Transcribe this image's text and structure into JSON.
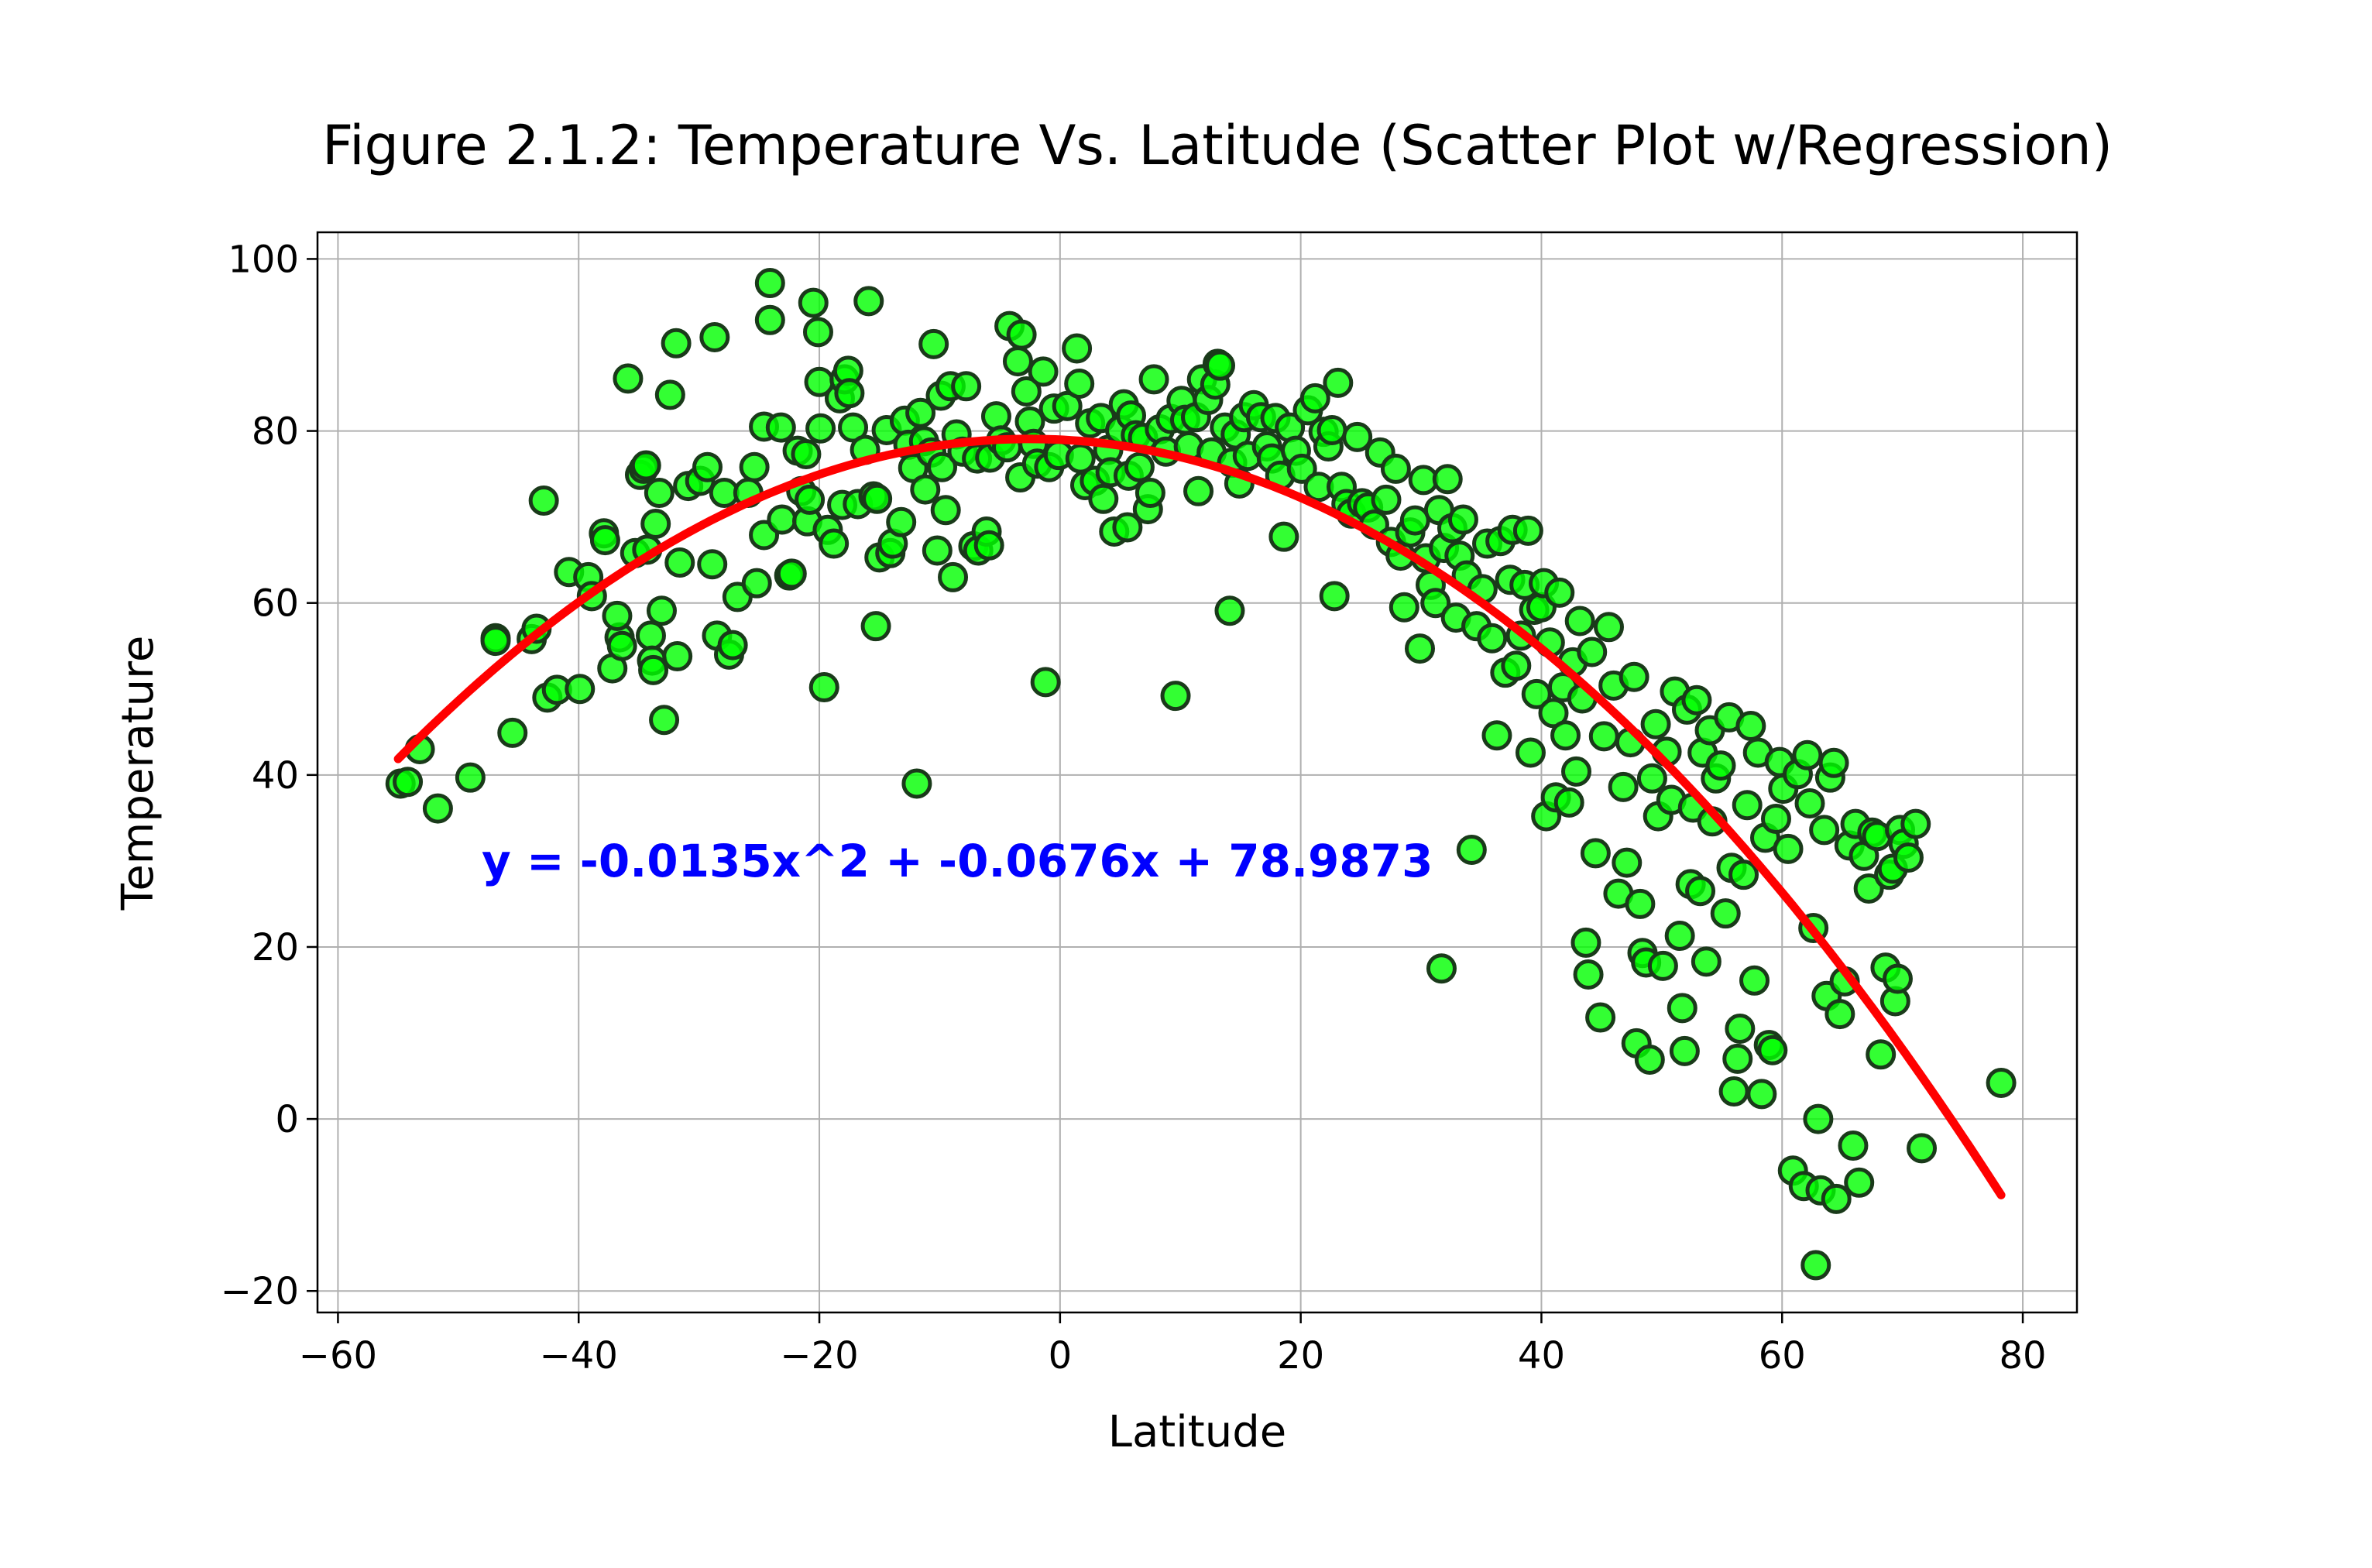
{
  "chart_data": {
    "type": "scatter",
    "title": "Figure 2.1.2: Temperature Vs. Latitude (Scatter Plot w/Regression)",
    "xlabel": "Latitude",
    "ylabel": "Temperature",
    "xlim": [
      -61.7,
      84.5
    ],
    "ylim": [
      -22.5,
      103.1
    ],
    "x_ticks": [
      -60,
      -40,
      -20,
      0,
      20,
      40,
      60,
      80
    ],
    "y_ticks": [
      -20,
      0,
      20,
      40,
      60,
      80,
      100
    ],
    "x_tick_labels": [
      "−60",
      "−40",
      "−20",
      "0",
      "20",
      "40",
      "60",
      "80"
    ],
    "y_tick_labels": [
      "−20",
      "0",
      "20",
      "40",
      "60",
      "80",
      "100"
    ],
    "grid": true,
    "marker": {
      "fill": "#00ff00",
      "edge": "#1a3a1a",
      "alpha": 0.8
    },
    "regression": {
      "type": "polynomial",
      "coefficients": [
        -0.0135,
        -0.0676,
        78.9873
      ],
      "x_range": [
        -55,
        78.2
      ],
      "color": "#ff0000",
      "equation_label": "y = -0.0135x^2 + -0.0676x + 78.9873",
      "equation_color": "#0000ff"
    },
    "points": [
      [
        -54.8,
        39
      ],
      [
        -54.2,
        39.2
      ],
      [
        -53.2,
        43
      ],
      [
        -51.7,
        36.1
      ],
      [
        -49,
        39.7
      ],
      [
        -46.9,
        55.9
      ],
      [
        -46.9,
        55.6
      ],
      [
        -45.5,
        44.9
      ],
      [
        -43.9,
        55.8
      ],
      [
        -43.5,
        57
      ],
      [
        -42.9,
        71.9
      ],
      [
        -42.6,
        49
      ],
      [
        -41.8,
        49.9
      ],
      [
        -40.8,
        63.6
      ],
      [
        -39.9,
        50
      ],
      [
        -39.2,
        63
      ],
      [
        -38.9,
        60.8
      ],
      [
        -37.9,
        68.1
      ],
      [
        -37.8,
        67.3
      ],
      [
        -37.2,
        52.4
      ],
      [
        -36.6,
        56
      ],
      [
        -36.8,
        58.5
      ],
      [
        -36.4,
        55
      ],
      [
        -35.9,
        86.1
      ],
      [
        -35.3,
        65.8
      ],
      [
        -34.9,
        74.9
      ],
      [
        -34.6,
        75.6
      ],
      [
        -34.4,
        76
      ],
      [
        -34.3,
        66.2
      ],
      [
        -34,
        56.2
      ],
      [
        -33.9,
        53.3
      ],
      [
        -33.8,
        52.2
      ],
      [
        -33.6,
        69.2
      ],
      [
        -33.3,
        72.8
      ],
      [
        -33.1,
        59.1
      ],
      [
        -32.9,
        46.4
      ],
      [
        -32.4,
        84.2
      ],
      [
        -31.9,
        90.2
      ],
      [
        -31.8,
        53.8
      ],
      [
        -31.6,
        64.7
      ],
      [
        -30.9,
        73.6
      ],
      [
        -29.9,
        74.2
      ],
      [
        -29.3,
        75.8
      ],
      [
        -28.9,
        64.5
      ],
      [
        -28.7,
        90.9
      ],
      [
        -28.5,
        56.2
      ],
      [
        -27.9,
        72.8
      ],
      [
        -27.5,
        54
      ],
      [
        -27.2,
        55.1
      ],
      [
        -26.8,
        60.7
      ],
      [
        -25.9,
        72.8
      ],
      [
        -25.4,
        75.8
      ],
      [
        -25.2,
        62.3
      ],
      [
        -24.6,
        67.9
      ],
      [
        -24.6,
        80.5
      ],
      [
        -24.1,
        97.2
      ],
      [
        -24.1,
        92.9
      ],
      [
        -23.2,
        80.4
      ],
      [
        -23.1,
        69.7
      ],
      [
        -22.5,
        63.2
      ],
      [
        -22.3,
        63.4
      ],
      [
        -21.8,
        77.7
      ],
      [
        -21.5,
        73
      ],
      [
        -21.1,
        77.3
      ],
      [
        -21,
        69.5
      ],
      [
        -20.8,
        72
      ],
      [
        -20.5,
        94.9
      ],
      [
        -20.1,
        91.5
      ],
      [
        -20,
        85.7
      ],
      [
        -19.9,
        80.3
      ],
      [
        -19.6,
        50.2
      ],
      [
        -19.3,
        68.5
      ],
      [
        -18.8,
        66.9
      ],
      [
        -18.3,
        83.8
      ],
      [
        -18.1,
        71.4
      ],
      [
        -17.9,
        86
      ],
      [
        -17.6,
        87
      ],
      [
        -17.5,
        84.4
      ],
      [
        -17.2,
        80.4
      ],
      [
        -16.8,
        71.5
      ],
      [
        -16.2,
        77.8
      ],
      [
        -15.9,
        95.1
      ],
      [
        -15.5,
        72.4
      ],
      [
        -15.3,
        57.3
      ],
      [
        -15.2,
        72.1
      ],
      [
        -15,
        65.3
      ],
      [
        -14.4,
        80.1
      ],
      [
        -14.1,
        65.8
      ],
      [
        -13.9,
        66.9
      ],
      [
        -13.2,
        69.4
      ],
      [
        -12.9,
        81.2
      ],
      [
        -12.6,
        78.4
      ],
      [
        -12.2,
        75.7
      ],
      [
        -11.9,
        39
      ],
      [
        -11.6,
        82.1
      ],
      [
        -11.3,
        78.8
      ],
      [
        -11.2,
        73.2
      ],
      [
        -10.7,
        77.5
      ],
      [
        -10.5,
        90.1
      ],
      [
        -10.2,
        66.1
      ],
      [
        -9.9,
        84.1
      ],
      [
        -9.8,
        75.8
      ],
      [
        -9.5,
        70.8
      ],
      [
        -9.1,
        85.2
      ],
      [
        -8.9,
        63
      ],
      [
        -8.6,
        79.6
      ],
      [
        -8.1,
        77.6
      ],
      [
        -7.8,
        85.2
      ],
      [
        -7.2,
        66.6
      ],
      [
        -6.9,
        76.8
      ],
      [
        -6.8,
        66.1
      ],
      [
        -6.1,
        68.3
      ],
      [
        -5.9,
        66.7
      ],
      [
        -5.8,
        76.9
      ],
      [
        -5.3,
        81.7
      ],
      [
        -4.9,
        78.9
      ],
      [
        -4.4,
        78.1
      ],
      [
        -4.2,
        92.2
      ],
      [
        -3.5,
        88.1
      ],
      [
        -3.3,
        74.6
      ],
      [
        -3.2,
        91.2
      ],
      [
        -2.8,
        84.6
      ],
      [
        -2.5,
        81.1
      ],
      [
        -2.2,
        78.5
      ],
      [
        -1.9,
        76.2
      ],
      [
        -1.4,
        86.9
      ],
      [
        -1.2,
        50.8
      ],
      [
        -0.9,
        75.8
      ],
      [
        -0.5,
        82.6
      ],
      [
        -0.1,
        77.2
      ],
      [
        0.6,
        82.9
      ],
      [
        1.4,
        89.6
      ],
      [
        1.6,
        85.5
      ],
      [
        1.7,
        76.8
      ],
      [
        2.1,
        73.7
      ],
      [
        2.5,
        80.9
      ],
      [
        2.9,
        74.2
      ],
      [
        3.4,
        81.5
      ],
      [
        3.6,
        72.1
      ],
      [
        4,
        77.8
      ],
      [
        4.2,
        75.2
      ],
      [
        4.5,
        68.3
      ],
      [
        5,
        80.1
      ],
      [
        5.3,
        83.1
      ],
      [
        5.6,
        68.8
      ],
      [
        5.7,
        74.8
      ],
      [
        5.9,
        81.8
      ],
      [
        6.3,
        79.5
      ],
      [
        6.6,
        75.8
      ],
      [
        6.9,
        79.2
      ],
      [
        7.3,
        70.9
      ],
      [
        7.5,
        72.8
      ],
      [
        7.8,
        86
      ],
      [
        8.3,
        80.2
      ],
      [
        8.8,
        77.6
      ],
      [
        9.2,
        81.4
      ],
      [
        9.6,
        49.2
      ],
      [
        10.1,
        83.5
      ],
      [
        10.4,
        81.3
      ],
      [
        10.7,
        78.2
      ],
      [
        11.3,
        81.6
      ],
      [
        11.5,
        73
      ],
      [
        11.8,
        86
      ],
      [
        12.3,
        83.6
      ],
      [
        12.6,
        77.5
      ],
      [
        12.9,
        85.4
      ],
      [
        13.1,
        87.8
      ],
      [
        13.3,
        87.6
      ],
      [
        13.7,
        80.4
      ],
      [
        14.1,
        59.1
      ],
      [
        14.3,
        76.3
      ],
      [
        14.6,
        79.6
      ],
      [
        14.9,
        73.9
      ],
      [
        15.3,
        81.6
      ],
      [
        15.6,
        77.1
      ],
      [
        16.1,
        83
      ],
      [
        16.7,
        81.6
      ],
      [
        17.2,
        78.2
      ],
      [
        17.6,
        76.8
      ],
      [
        17.9,
        81.5
      ],
      [
        18.3,
        74.8
      ],
      [
        18.6,
        67.7
      ],
      [
        19.1,
        80.4
      ],
      [
        19.6,
        77.7
      ],
      [
        20.1,
        75.6
      ],
      [
        20.6,
        82.4
      ],
      [
        21.2,
        83.8
      ],
      [
        21.5,
        73.5
      ],
      [
        21.9,
        79.9
      ],
      [
        22.3,
        78.2
      ],
      [
        22.6,
        80.1
      ],
      [
        22.8,
        60.8
      ],
      [
        23.1,
        85.6
      ],
      [
        23.4,
        73.5
      ],
      [
        23.8,
        71.5
      ],
      [
        24.2,
        70.4
      ],
      [
        24.7,
        79.3
      ],
      [
        25.1,
        71.6
      ],
      [
        25.6,
        71.1
      ],
      [
        26.1,
        69.1
      ],
      [
        26.6,
        77.5
      ],
      [
        27.1,
        72
      ],
      [
        27.5,
        67.1
      ],
      [
        27.9,
        75.6
      ],
      [
        28.3,
        65.5
      ],
      [
        28.6,
        59.5
      ],
      [
        29.1,
        68.2
      ],
      [
        29.5,
        69.6
      ],
      [
        29.9,
        54.7
      ],
      [
        30.2,
        74.3
      ],
      [
        30.4,
        65.2
      ],
      [
        30.8,
        62.1
      ],
      [
        31.2,
        60
      ],
      [
        31.5,
        70.8
      ],
      [
        31.7,
        17.5
      ],
      [
        31.9,
        66.4
      ],
      [
        32.2,
        74.4
      ],
      [
        32.6,
        68.7
      ],
      [
        32.9,
        58.3
      ],
      [
        33.2,
        65.5
      ],
      [
        33.5,
        69.7
      ],
      [
        33.8,
        63.2
      ],
      [
        34.2,
        31.3
      ],
      [
        34.6,
        57.3
      ],
      [
        35.1,
        61.6
      ],
      [
        35.5,
        66.9
      ],
      [
        35.9,
        55.9
      ],
      [
        36.3,
        44.6
      ],
      [
        36.6,
        67.2
      ],
      [
        37,
        51.9
      ],
      [
        37.4,
        62.7
      ],
      [
        37.6,
        68.5
      ],
      [
        37.9,
        52.7
      ],
      [
        38.3,
        56.2
      ],
      [
        38.6,
        62.1
      ],
      [
        38.9,
        68.4
      ],
      [
        39.1,
        42.6
      ],
      [
        39.4,
        59.2
      ],
      [
        39.6,
        49.4
      ],
      [
        40,
        59.5
      ],
      [
        40.2,
        62.3
      ],
      [
        40.4,
        35.2
      ],
      [
        40.7,
        55.4
      ],
      [
        41,
        47.2
      ],
      [
        41.2,
        37.4
      ],
      [
        41.5,
        61.2
      ],
      [
        41.8,
        50.2
      ],
      [
        42,
        44.6
      ],
      [
        42.3,
        36.8
      ],
      [
        42.6,
        53.1
      ],
      [
        42.9,
        40.4
      ],
      [
        43.2,
        57.9
      ],
      [
        43.4,
        48.9
      ],
      [
        43.7,
        20.5
      ],
      [
        43.9,
        16.8
      ],
      [
        44.2,
        54.3
      ],
      [
        44.5,
        30.9
      ],
      [
        44.9,
        11.8
      ],
      [
        45.2,
        44.5
      ],
      [
        45.6,
        57.2
      ],
      [
        46,
        50.4
      ],
      [
        46.4,
        26.2
      ],
      [
        46.8,
        38.6
      ],
      [
        47.1,
        29.8
      ],
      [
        47.4,
        43.8
      ],
      [
        47.7,
        51.4
      ],
      [
        47.9,
        8.8
      ],
      [
        48.2,
        25
      ],
      [
        48.4,
        19.3
      ],
      [
        48.7,
        18.2
      ],
      [
        49,
        6.9
      ],
      [
        49.2,
        39.6
      ],
      [
        49.5,
        45.9
      ],
      [
        49.7,
        35.2
      ],
      [
        50.1,
        17.8
      ],
      [
        50.4,
        42.7
      ],
      [
        50.8,
        37.1
      ],
      [
        51.1,
        49.7
      ],
      [
        51.5,
        21.3
      ],
      [
        51.7,
        12.9
      ],
      [
        51.9,
        7.9
      ],
      [
        52.1,
        47.6
      ],
      [
        52.4,
        27.3
      ],
      [
        52.6,
        36.2
      ],
      [
        52.9,
        48.7
      ],
      [
        53.2,
        26.5
      ],
      [
        53.4,
        42.6
      ],
      [
        53.7,
        18.3
      ],
      [
        54,
        45.2
      ],
      [
        54.2,
        34.6
      ],
      [
        54.5,
        39.6
      ],
      [
        54.9,
        41.1
      ],
      [
        55.3,
        23.9
      ],
      [
        55.6,
        46.7
      ],
      [
        55.8,
        29.2
      ],
      [
        56,
        3.2
      ],
      [
        56.3,
        7
      ],
      [
        56.5,
        10.5
      ],
      [
        56.8,
        28.4
      ],
      [
        57.1,
        36.5
      ],
      [
        57.4,
        45.7
      ],
      [
        57.7,
        16.1
      ],
      [
        58,
        42.6
      ],
      [
        58.3,
        2.9
      ],
      [
        58.6,
        32.7
      ],
      [
        58.9,
        8.6
      ],
      [
        59.2,
        8
      ],
      [
        59.5,
        34.9
      ],
      [
        59.8,
        41.5
      ],
      [
        60.1,
        38.4
      ],
      [
        60.5,
        31.4
      ],
      [
        60.9,
        -6
      ],
      [
        61.3,
        40.1
      ],
      [
        61.8,
        -7.8
      ],
      [
        62.1,
        42.3
      ],
      [
        62.3,
        36.7
      ],
      [
        62.6,
        22.2
      ],
      [
        62.8,
        -17
      ],
      [
        63,
        0
      ],
      [
        63.2,
        -8.3
      ],
      [
        63.5,
        33.6
      ],
      [
        63.7,
        14.3
      ],
      [
        64,
        39.7
      ],
      [
        64.3,
        41.4
      ],
      [
        64.5,
        -9.3
      ],
      [
        64.8,
        12.2
      ],
      [
        65.2,
        16
      ],
      [
        65.6,
        31.8
      ],
      [
        65.9,
        -3.1
      ],
      [
        66.1,
        34.3
      ],
      [
        66.4,
        -7.4
      ],
      [
        66.8,
        30.6
      ],
      [
        67.2,
        26.8
      ],
      [
        67.5,
        33.3
      ],
      [
        67.9,
        32.9
      ],
      [
        68.2,
        7.5
      ],
      [
        68.6,
        17.6
      ],
      [
        68.9,
        28.4
      ],
      [
        69.2,
        29.1
      ],
      [
        69.4,
        13.7
      ],
      [
        69.6,
        16.3
      ],
      [
        69.8,
        33.6
      ],
      [
        70.1,
        32
      ],
      [
        70.5,
        30.4
      ],
      [
        71.1,
        34.3
      ],
      [
        71.6,
        -3.4
      ],
      [
        78.2,
        4.2
      ]
    ]
  }
}
